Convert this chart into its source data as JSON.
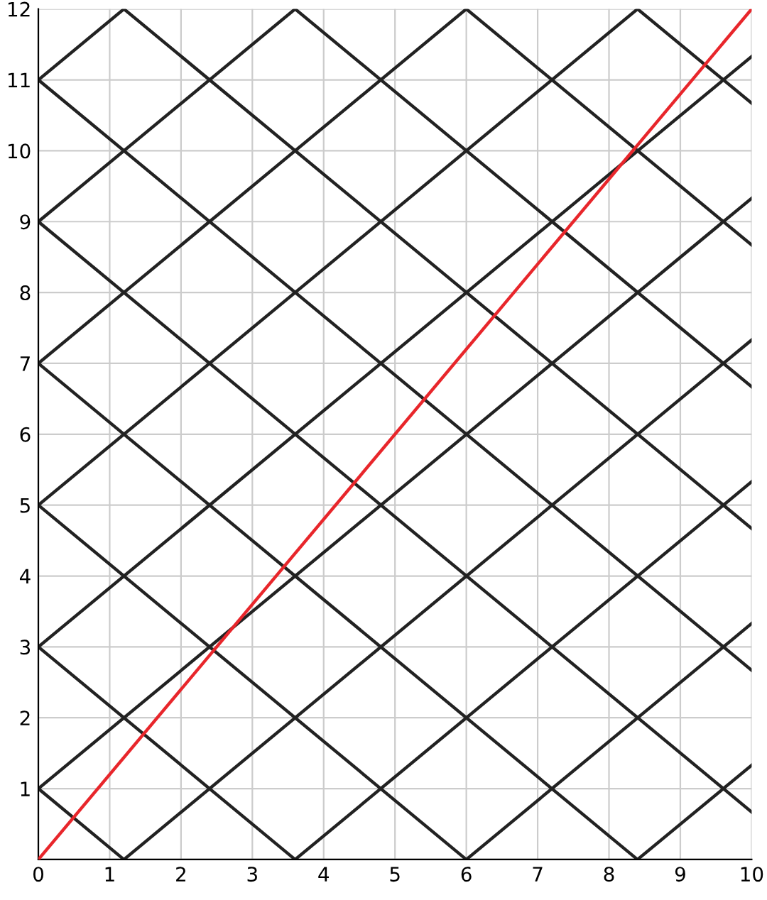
{
  "chart_data": {
    "type": "line",
    "xlim": [
      0,
      10
    ],
    "ylim": [
      0,
      12
    ],
    "xticks": [
      0,
      1,
      2,
      3,
      4,
      5,
      6,
      7,
      8,
      9,
      10
    ],
    "yticks": [
      {
        "value": 0,
        "label": null
      },
      1,
      2,
      3,
      4,
      5,
      6,
      7,
      8,
      9,
      10,
      11,
      12
    ],
    "grid": true,
    "marker": "none",
    "line_style": "solid",
    "series": [
      {
        "color": "#222222",
        "x": [
          0,
          10
        ],
        "values": [
          1,
          9.33
        ]
      },
      {
        "color": "#222222",
        "x": [
          0,
          10
        ],
        "values": [
          3,
          11.33
        ]
      },
      {
        "color": "#222222",
        "x": [
          0,
          8.4
        ],
        "values": [
          5,
          12
        ]
      },
      {
        "color": "#222222",
        "x": [
          0,
          6
        ],
        "values": [
          7,
          12
        ]
      },
      {
        "color": "#222222",
        "x": [
          0,
          3.6
        ],
        "values": [
          9,
          12
        ]
      },
      {
        "color": "#222222",
        "x": [
          0,
          1.2
        ],
        "values": [
          11,
          12
        ]
      },
      {
        "color": "#222222",
        "x": [
          1.2,
          10
        ],
        "values": [
          0,
          7.33
        ]
      },
      {
        "color": "#222222",
        "x": [
          3.6,
          10
        ],
        "values": [
          0,
          5.33
        ]
      },
      {
        "color": "#222222",
        "x": [
          6,
          10
        ],
        "values": [
          0,
          3.33
        ]
      },
      {
        "color": "#222222",
        "x": [
          8.4,
          10
        ],
        "values": [
          0,
          1.33
        ]
      },
      {
        "color": "#222222",
        "x": [
          0,
          1.2
        ],
        "values": [
          1,
          0
        ]
      },
      {
        "color": "#222222",
        "x": [
          0,
          3.6
        ],
        "values": [
          3,
          0
        ]
      },
      {
        "color": "#222222",
        "x": [
          0,
          6
        ],
        "values": [
          5,
          0
        ]
      },
      {
        "color": "#222222",
        "x": [
          0,
          8.4
        ],
        "values": [
          7,
          0
        ]
      },
      {
        "color": "#222222",
        "x": [
          0,
          10
        ],
        "values": [
          9,
          0.67
        ]
      },
      {
        "color": "#222222",
        "x": [
          0,
          10
        ],
        "values": [
          11,
          2.67
        ]
      },
      {
        "color": "#222222",
        "x": [
          1.2,
          10
        ],
        "values": [
          12,
          4.67
        ]
      },
      {
        "color": "#222222",
        "x": [
          3.6,
          10
        ],
        "values": [
          12,
          6.67
        ]
      },
      {
        "color": "#222222",
        "x": [
          6,
          10
        ],
        "values": [
          12,
          8.67
        ]
      },
      {
        "color": "#222222",
        "x": [
          8.4,
          10
        ],
        "values": [
          12,
          10.67
        ]
      },
      {
        "color": "#e8262b",
        "x": [
          0,
          10
        ],
        "values": [
          0,
          12
        ]
      }
    ]
  }
}
